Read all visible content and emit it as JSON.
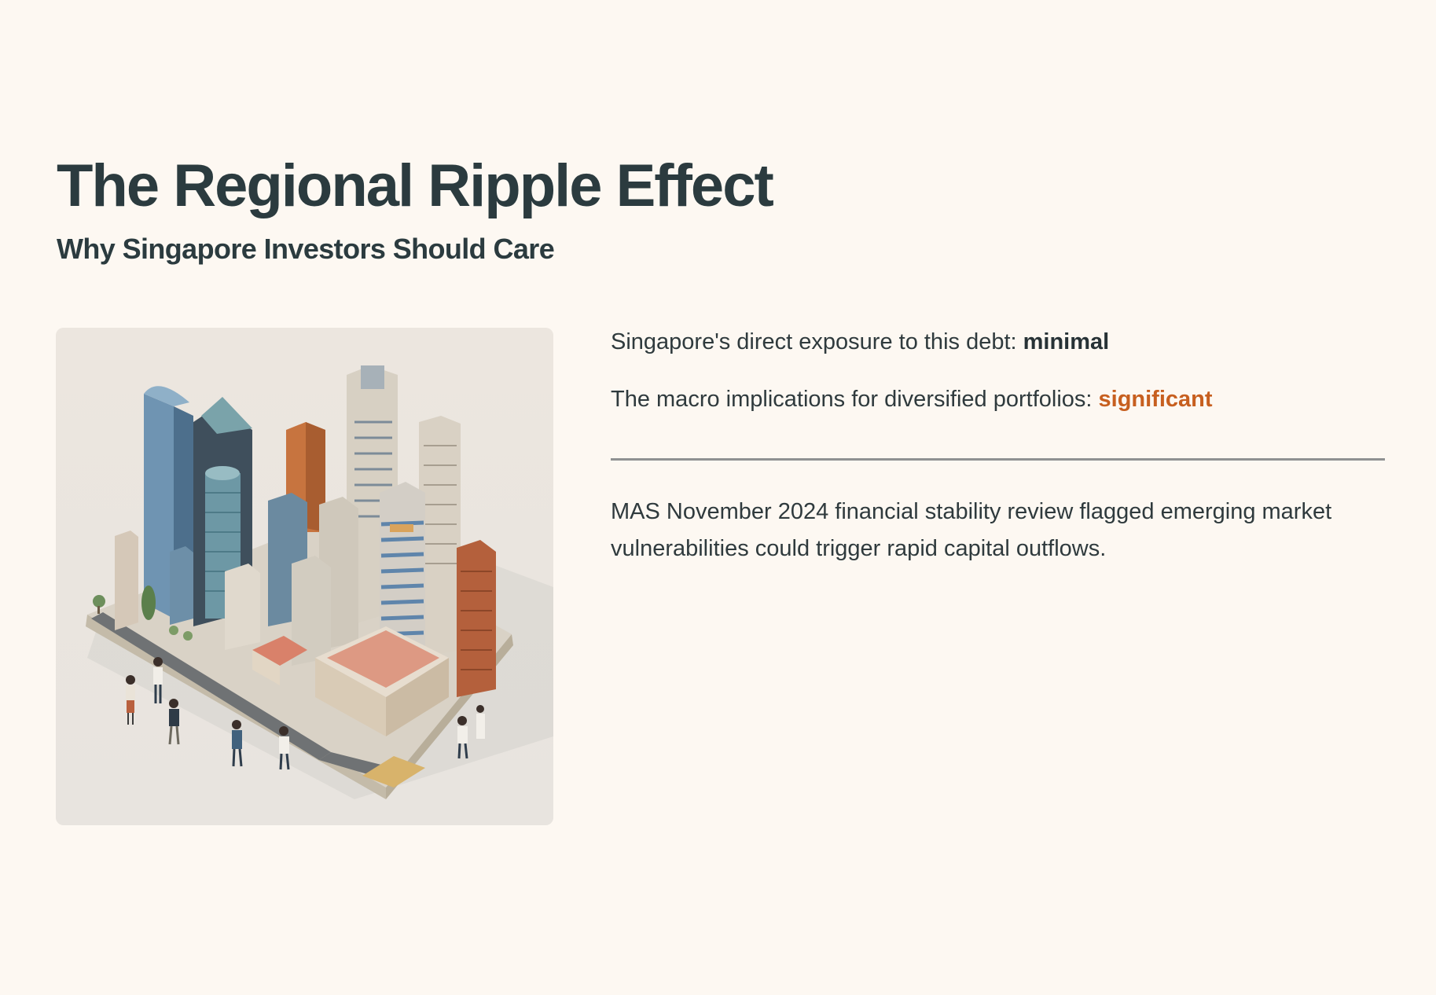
{
  "slide": {
    "title": "The Regional Ripple Effect",
    "subtitle": "Why Singapore Investors Should Care",
    "image_icon": "singapore-cityscape-illustration",
    "points": [
      {
        "prefix": "Singapore's direct exposure to this debt: ",
        "emphasis": "minimal"
      },
      {
        "prefix": "The macro implications for diversified portfolios: ",
        "emphasis": "significant"
      }
    ],
    "note": "MAS November 2024 financial stability review flagged emerging market vulnerabilities could trigger rapid capital outflows."
  },
  "colors": {
    "background": "#fdf8f2",
    "heading": "#2b3b3f",
    "body_text": "#2f3a3d",
    "accent": "#c75f1f",
    "divider": "#8f9192"
  }
}
